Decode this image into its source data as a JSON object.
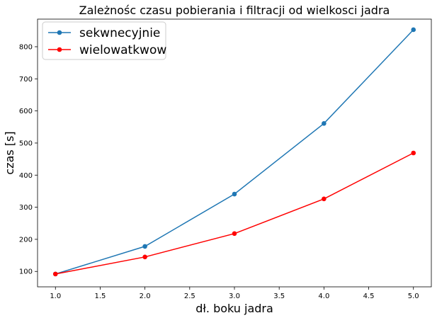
{
  "chart_data": {
    "type": "line",
    "title": "Zależnośc czasu pobierania i filtracji od wielkosci jadra",
    "xlabel": "dł. boku jadra",
    "ylabel": "czas [s]",
    "x": [
      1.0,
      2.0,
      3.0,
      4.0,
      5.0
    ],
    "xlim": [
      0.8,
      5.2
    ],
    "ylim": [
      52,
      886
    ],
    "xticks": [
      "1.0",
      "1.5",
      "2.0",
      "2.5",
      "3.0",
      "3.5",
      "4.0",
      "4.5",
      "5.0"
    ],
    "yticks": [
      "100",
      "200",
      "300",
      "400",
      "500",
      "600",
      "700",
      "800"
    ],
    "grid": false,
    "legend_position": "top-left",
    "series": [
      {
        "name": "sekwnecyjnie",
        "color": "#1f77b4",
        "marker": "circle",
        "values": [
          92,
          178,
          341,
          561,
          853
        ]
      },
      {
        "name": "wielowatkwow",
        "color": "#ff0000",
        "marker": "circle",
        "values": [
          92,
          145,
          218,
          326,
          469
        ]
      }
    ]
  }
}
